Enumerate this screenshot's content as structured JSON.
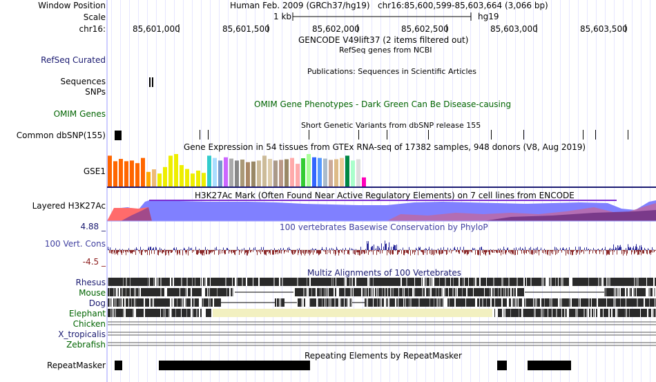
{
  "header": {
    "window_position_label": "Window Position",
    "assembly": "Human Feb. 2009 (GRCh37/hg19)",
    "position": "chr16:85,600,599-85,603,664 (3,066 bp)",
    "scale_label": "Scale",
    "scale_length": "1 kb",
    "scale_assembly": "hg19",
    "chrom_label": "chr16:",
    "ticks": [
      "85,601,000",
      "85,601,500",
      "85,602,000",
      "85,602,500",
      "85,603,000",
      "85,603,500"
    ]
  },
  "tracks": {
    "gencode_title": "GENCODE V49lift37 (2 items filtered out)",
    "refseq_title": "RefSeq genes from NCBI",
    "refseq_label": "RefSeq Curated",
    "publications_title": "Publications: Sequences in Scientific Articles",
    "sequences_label": "Sequences",
    "snps_label": "SNPs",
    "omim_title": "OMIM Gene Phenotypes - Dark Green Can Be Disease-causing",
    "omim_label": "OMIM Genes",
    "dbsnp_title": "Short Genetic Variants from dbSNP release 155",
    "dbsnp_label": "Common dbSNP(155)",
    "gtex_title": "Gene Expression in 54 tissues from GTEx RNA-seq of 17382 samples, 948 donors (V8, Aug 2019)",
    "gse1_label": "GSE1",
    "h3k27ac_title": "H3K27Ac Mark (Often Found Near Active Regulatory Elements) on 7 cell lines from ENCODE",
    "h3k27ac_label": "Layered H3K27Ac",
    "phylop_max": "4.88 _",
    "phylop_title": "100 vertebrates Basewise Conservation by PhyloP",
    "phylop_label": "100 Vert. Cons",
    "phylop_min": "-4.5 _",
    "multiz_title": "Multiz Alignments of 100 Vertebrates",
    "repeatmasker_title": "Repeating Elements by RepeatMasker",
    "repeatmasker_label": "RepeatMasker"
  },
  "species": [
    "Rhesus",
    "Mouse",
    "Dog",
    "Elephant",
    "Chicken",
    "X_tropicalis",
    "Zebrafish"
  ],
  "gtex": {
    "values": [
      0.95,
      0.78,
      0.85,
      0.78,
      0.8,
      0.72,
      0.88,
      0.45,
      0.53,
      0.4,
      0.6,
      0.95,
      1.0,
      0.66,
      0.54,
      0.4,
      0.49,
      0.42,
      0.95,
      0.88,
      0.8,
      0.9,
      0.86,
      0.8,
      0.83,
      0.75,
      0.77,
      0.8,
      0.95,
      0.85,
      0.8,
      0.82,
      0.84,
      0.88,
      0.7,
      0.87,
      1.0,
      0.9,
      0.88,
      0.86,
      0.82,
      0.84,
      0.88,
      0.95,
      0.8,
      0.84,
      0.28
    ],
    "colors": [
      "#FF6600",
      "#FF6600",
      "#FF6600",
      "#FF6600",
      "#FF6600",
      "#FF6600",
      "#FF6600",
      "#FFAA00",
      "#EEBB77",
      "#EEEE00",
      "#EEEE00",
      "#EEEE00",
      "#EEEE00",
      "#EEEE00",
      "#EEEE00",
      "#EEEE00",
      "#EEEE00",
      "#EEEE00",
      "#33CCCC",
      "#AADDFF",
      "#7799CC",
      "#CC66FF",
      "#AAAAAA",
      "#888888",
      "#AA9977",
      "#AA8866",
      "#998866",
      "#CCBB99",
      "#CCBB99",
      "#DDCCAA",
      "#AA9988",
      "#BB9988",
      "#998866",
      "#FFAAAA",
      "#FFAAAA",
      "#33CC33",
      "#AAFF99",
      "#3366FF",
      "#5599FF",
      "#AABBCC",
      "#CCAA99",
      "#DDBB88",
      "#EECC99",
      "#008844",
      "#AAFFCC",
      "#DDDDDD",
      "#FF00BB"
    ]
  }
}
